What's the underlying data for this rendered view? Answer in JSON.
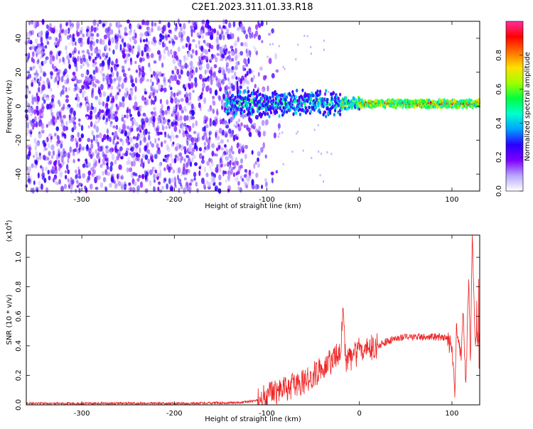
{
  "title": "C2E1.2023.311.01.33.R18",
  "colors": {
    "snr_line": "#ee2222",
    "colorbar_stops": [
      "#ffffff",
      "#b8a6ff",
      "#7b00ff",
      "#2a00ff",
      "#00a0ff",
      "#00ffd0",
      "#00ff40",
      "#a0ff00",
      "#ffe000",
      "#ff7000",
      "#ff0000",
      "#ff2ea0"
    ]
  },
  "chart_data": [
    {
      "type": "heatmap",
      "xlabel": "Height of straight line (km)",
      "ylabel": "Frequency (Hz)",
      "xlim": [
        -360,
        130
      ],
      "ylim": [
        -50,
        50
      ],
      "xticks": [
        -300,
        -200,
        -100,
        0,
        100
      ],
      "yticks": [
        -40,
        -20,
        0,
        20,
        40
      ],
      "colorbar": {
        "label": "Normalized spectral amplitude",
        "range": [
          0.0,
          1.0
        ],
        "ticks": [
          0.0,
          0.2,
          0.4,
          0.6,
          0.8
        ]
      },
      "features": [
        {
          "region": "noise",
          "x": [
            -360,
            -100
          ],
          "y": [
            -50,
            50
          ],
          "amplitude": 0.15
        },
        {
          "region": "signal_ridge",
          "x": [
            -145,
            130
          ],
          "y_center": 1.5,
          "y_halfwidth": 3,
          "amplitude_range": [
            0.3,
            0.95
          ]
        }
      ]
    },
    {
      "type": "line",
      "xlabel": "Height of straight line (km)",
      "ylabel": "SNR (10 * v/v)",
      "y_multiplier": "(x10",
      "y_multiplier_exp": "4",
      "y_multiplier_close": ")",
      "xlim": [
        -360,
        130
      ],
      "ylim": [
        0,
        1.15
      ],
      "xticks": [
        -300,
        -200,
        -100,
        0,
        100
      ],
      "yticks": [
        0.0,
        0.2,
        0.4,
        0.6,
        0.8,
        1.0
      ],
      "series": [
        {
          "x": [
            -360,
            -300,
            -200,
            -130,
            -110,
            -100,
            -90,
            -75,
            -60,
            -50,
            -40,
            -30,
            -20,
            -18,
            -15,
            -10,
            0,
            10,
            20,
            30,
            40,
            60,
            80,
            95,
            100,
            103,
            105,
            110,
            112,
            115,
            118,
            120,
            122,
            125,
            130
          ],
          "y": [
            0.01,
            0.01,
            0.01,
            0.015,
            0.03,
            0.06,
            0.08,
            0.12,
            0.15,
            0.2,
            0.25,
            0.3,
            0.35,
            0.65,
            0.3,
            0.3,
            0.37,
            0.38,
            0.4,
            0.43,
            0.45,
            0.46,
            0.46,
            0.46,
            0.4,
            0.05,
            0.55,
            0.3,
            0.62,
            0.15,
            0.85,
            0.3,
            1.15,
            0.45,
            0.46
          ]
        }
      ]
    }
  ]
}
